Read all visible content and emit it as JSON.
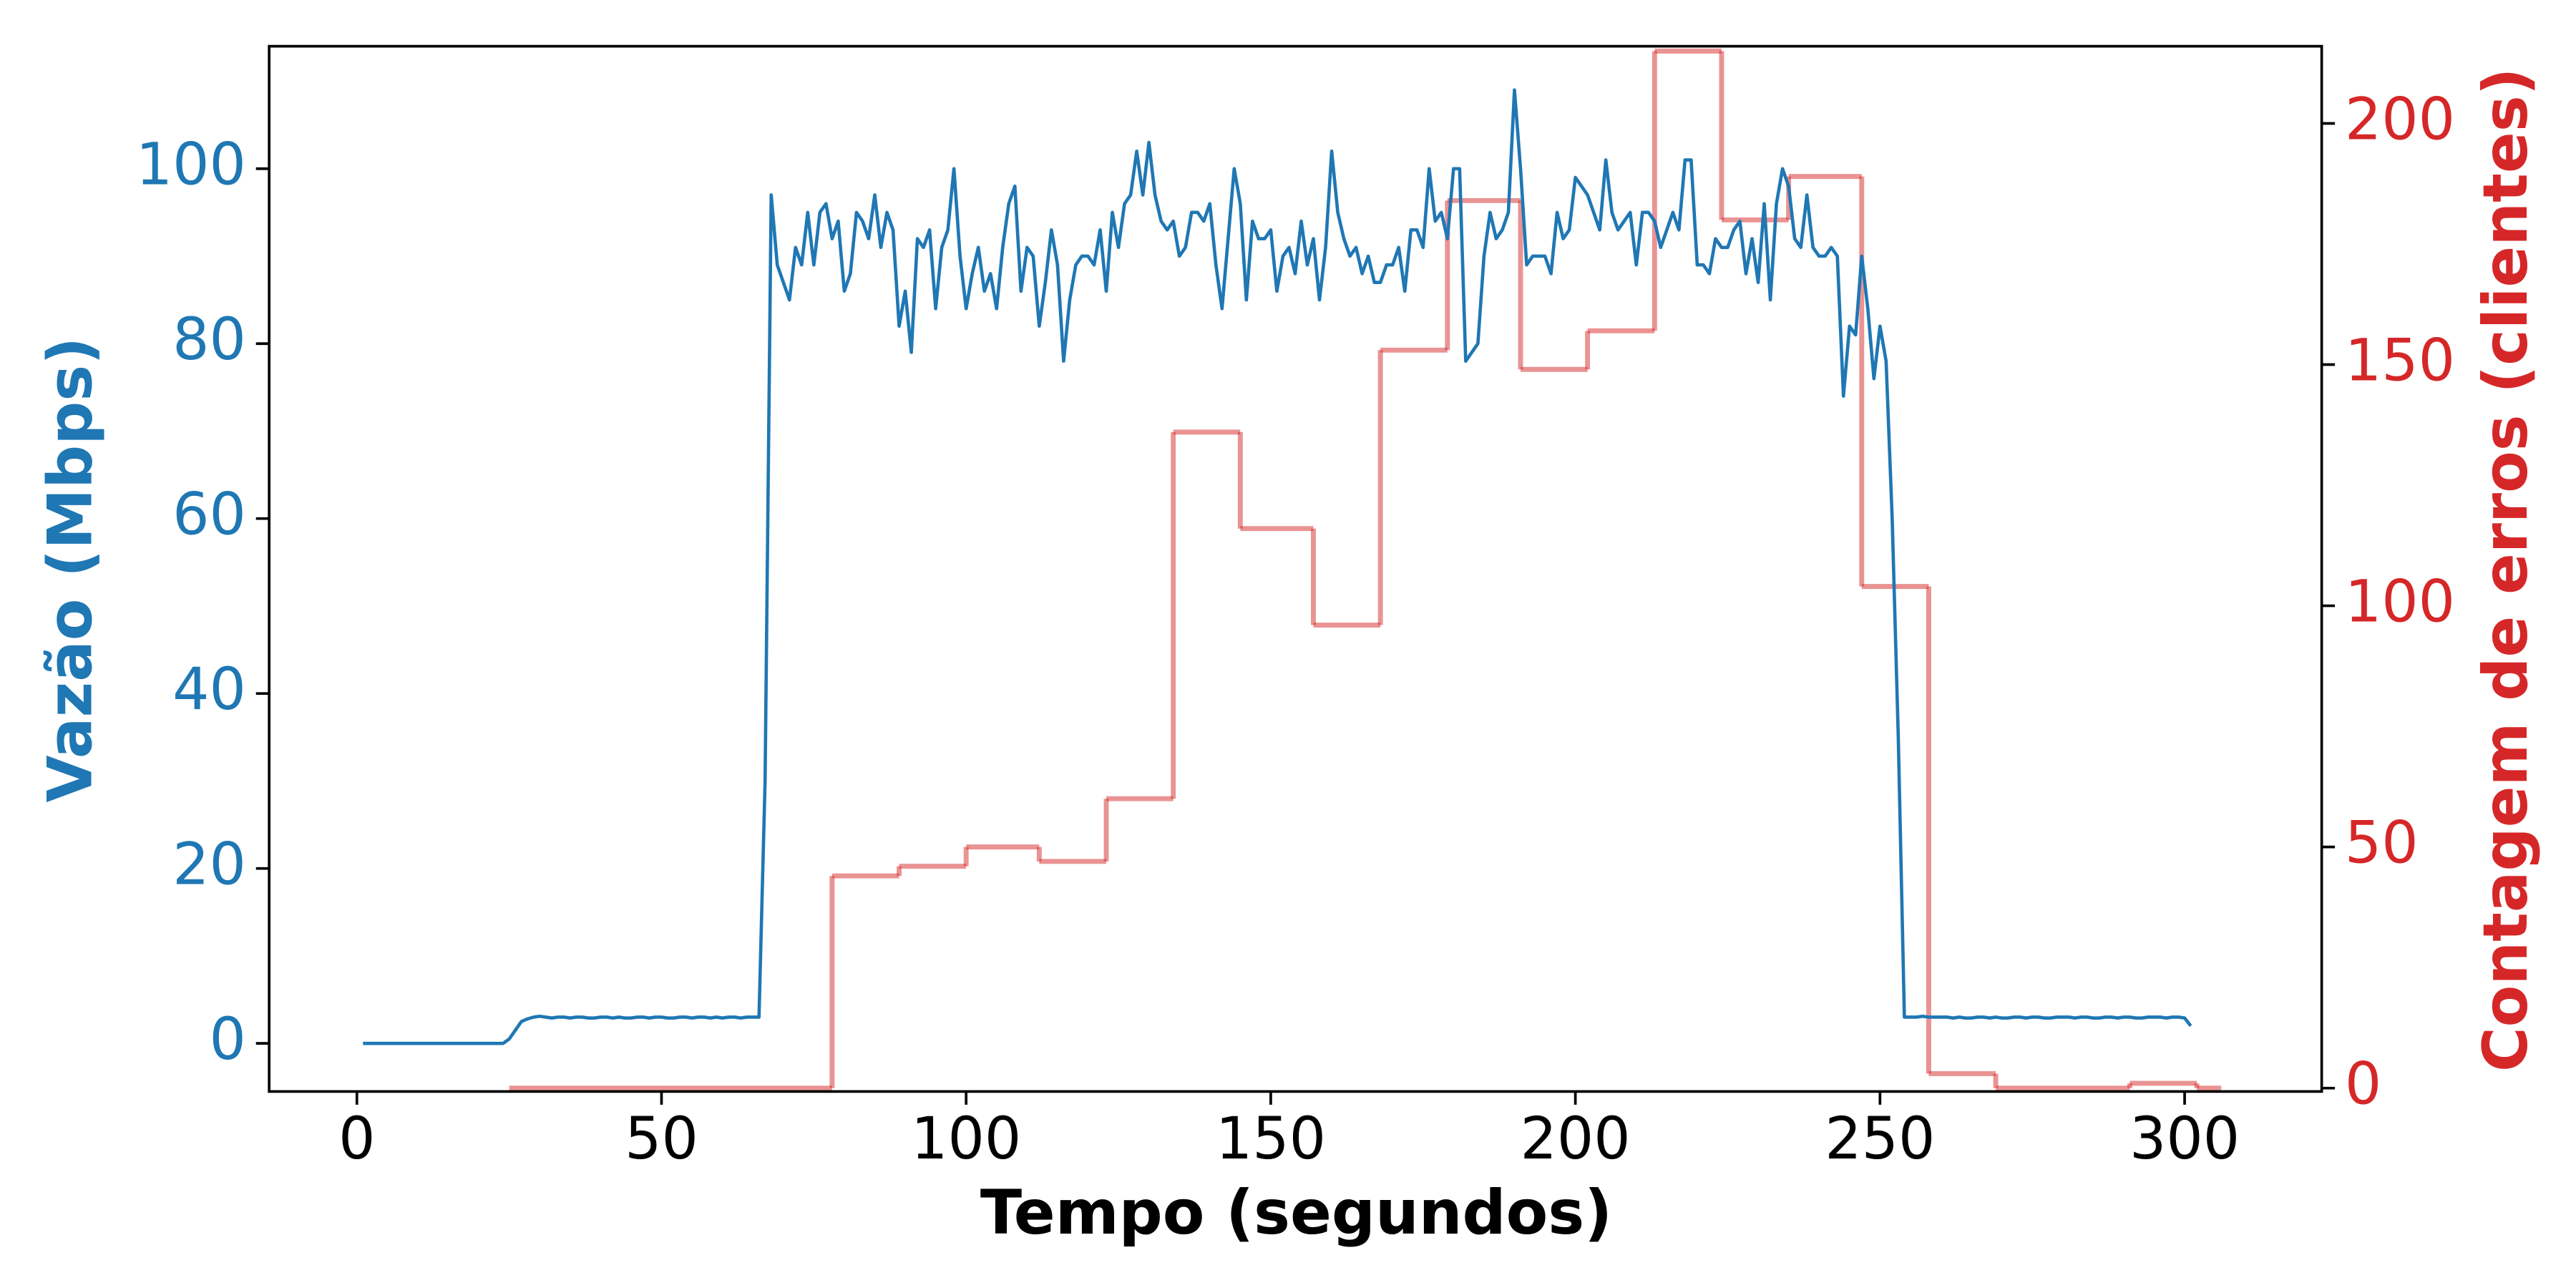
{
  "chart_data": {
    "type": "line",
    "xlabel": "Tempo (segundos)",
    "ylabel": "Vazão (Mbps)",
    "y2label": "Contagem de erros (clientes)",
    "ylabel_color": "#1f77b4",
    "y2label_color": "#d62728",
    "xlim": [
      -14.4,
      322.5
    ],
    "xticks": [
      0,
      50,
      100,
      150,
      200,
      250,
      300
    ],
    "ylim": [
      -5.5,
      114
    ],
    "yticks": [
      0,
      20,
      40,
      60,
      80,
      100
    ],
    "y2lim": [
      -0.7,
      216
    ],
    "y2ticks": [
      0,
      50,
      100,
      150,
      200
    ],
    "grid": false,
    "series": [
      {
        "color": "#1f77b4",
        "x": [
          1,
          2,
          3,
          4,
          5,
          6,
          7,
          8,
          9,
          10,
          11,
          12,
          13,
          14,
          15,
          16,
          17,
          18,
          19,
          20,
          21,
          22,
          23,
          24,
          25,
          26,
          27,
          28,
          29,
          30,
          31,
          32,
          33,
          34,
          35,
          36,
          37,
          38,
          39,
          40,
          41,
          42,
          43,
          44,
          45,
          46,
          47,
          48,
          49,
          50,
          51,
          52,
          53,
          54,
          55,
          56,
          57,
          58,
          59,
          60,
          61,
          62,
          63,
          64,
          65,
          66,
          67,
          68,
          69,
          70,
          71,
          72,
          73,
          74,
          75,
          76,
          77,
          78,
          79,
          80,
          81,
          82,
          83,
          84,
          85,
          86,
          87,
          88,
          89,
          90,
          91,
          92,
          93,
          94,
          95,
          96,
          97,
          98,
          99,
          100,
          101,
          102,
          103,
          104,
          105,
          106,
          107,
          108,
          109,
          110,
          111,
          112,
          113,
          114,
          115,
          116,
          117,
          118,
          119,
          120,
          121,
          122,
          123,
          124,
          125,
          126,
          127,
          128,
          129,
          130,
          131,
          132,
          133,
          134,
          135,
          136,
          137,
          138,
          139,
          140,
          141,
          142,
          143,
          144,
          145,
          146,
          147,
          148,
          149,
          150,
          151,
          152,
          153,
          154,
          155,
          156,
          157,
          158,
          159,
          160,
          161,
          162,
          163,
          164,
          165,
          166,
          167,
          168,
          169,
          170,
          171,
          172,
          173,
          174,
          175,
          176,
          177,
          178,
          179,
          180,
          181,
          182,
          183,
          184,
          185,
          186,
          187,
          188,
          189,
          190,
          191,
          192,
          193,
          194,
          195,
          196,
          197,
          198,
          199,
          200,
          201,
          202,
          203,
          204,
          205,
          206,
          207,
          208,
          209,
          210,
          211,
          212,
          213,
          214,
          215,
          216,
          217,
          218,
          219,
          220,
          221,
          222,
          223,
          224,
          225,
          226,
          227,
          228,
          229,
          230,
          231,
          232,
          233,
          234,
          235,
          236,
          237,
          238,
          239,
          240,
          241,
          242,
          243,
          244,
          245,
          246,
          247,
          248,
          249,
          250,
          251,
          252,
          253,
          254,
          255,
          256,
          257,
          258,
          259,
          260,
          261,
          262,
          263,
          264,
          265,
          266,
          267,
          268,
          269,
          270,
          271,
          272,
          273,
          274,
          275,
          276,
          277,
          278,
          279,
          280,
          281,
          282,
          283,
          284,
          285,
          286,
          287,
          288,
          289,
          290,
          291,
          292,
          293,
          294,
          295,
          296,
          297,
          298,
          299,
          300,
          301
        ],
        "values": [
          0,
          0,
          0,
          0,
          0,
          0,
          0,
          0,
          0,
          0,
          0,
          0,
          0,
          0,
          0,
          0,
          0,
          0,
          0,
          0,
          0,
          0,
          0,
          0,
          0.5,
          1.5,
          2.5,
          2.8,
          3,
          3.1,
          3,
          2.9,
          3,
          3,
          2.9,
          3,
          3,
          2.9,
          2.9,
          3,
          3,
          2.9,
          3,
          2.9,
          2.9,
          3,
          3,
          2.9,
          3,
          3,
          2.9,
          2.9,
          3,
          3,
          2.9,
          3,
          3,
          2.9,
          3,
          2.9,
          3,
          3,
          2.9,
          3,
          3,
          3,
          30,
          97,
          89,
          87,
          85,
          91,
          89,
          95,
          89,
          95,
          96,
          92,
          94,
          86,
          88,
          95,
          94,
          92,
          97,
          91,
          95,
          93,
          82,
          86,
          79,
          92,
          91,
          93,
          84,
          91,
          93,
          100,
          90,
          84,
          88,
          91,
          86,
          88,
          84,
          91,
          96,
          98,
          86,
          91,
          90,
          82,
          87,
          93,
          89,
          78,
          85,
          89,
          90,
          90,
          89,
          93,
          86,
          95,
          91,
          96,
          97,
          102,
          97,
          103,
          97,
          94,
          93,
          94,
          90,
          91,
          95,
          95,
          94,
          96,
          89,
          84,
          92,
          100,
          96,
          85,
          94,
          92,
          92,
          93,
          86,
          90,
          91,
          88,
          94,
          89,
          92,
          85,
          91,
          102,
          95,
          92,
          90,
          91,
          88,
          90,
          87,
          87,
          89,
          89,
          91,
          86,
          93,
          93,
          91,
          100,
          94,
          95,
          92,
          100,
          100,
          78,
          79,
          80,
          90,
          95,
          92,
          93,
          95,
          109,
          100,
          89,
          90,
          90,
          90,
          88,
          95,
          92,
          93,
          99,
          98,
          97,
          95,
          93,
          101,
          95,
          93,
          94,
          95,
          89,
          95,
          95,
          94,
          91,
          93,
          95,
          93,
          101,
          101,
          89,
          89,
          88,
          92,
          91,
          91,
          93,
          94,
          88,
          92,
          87,
          96,
          85,
          96,
          100,
          98,
          92,
          91,
          97,
          91,
          90,
          90,
          91,
          90,
          74,
          82,
          81,
          90,
          84,
          76,
          82,
          78,
          60,
          35,
          3,
          3,
          3,
          3.1,
          3,
          3,
          3,
          3,
          2.9,
          3,
          2.9,
          2.9,
          3,
          3,
          2.9,
          3,
          2.9,
          2.9,
          3,
          3,
          2.9,
          3,
          3,
          2.9,
          2.9,
          3,
          3,
          3,
          2.9,
          3,
          3,
          2.9,
          2.9,
          3,
          3,
          2.9,
          3,
          3,
          2.9,
          2.9,
          3,
          3,
          3,
          2.9,
          3,
          3,
          2.9,
          2
        ]
      },
      {
        "color": "#d62728",
        "opacity": 0.5,
        "axis": "y2",
        "step": "post",
        "bins": [
          25,
          78,
          89,
          100,
          112,
          123,
          134,
          145,
          157,
          168,
          179,
          191,
          202,
          213,
          224,
          235,
          247,
          258,
          269,
          291,
          302,
          306
        ],
        "values": [
          0,
          44,
          46,
          50,
          47,
          60,
          136,
          116,
          96,
          153,
          184,
          149,
          157,
          215,
          180,
          189,
          104,
          3,
          0,
          1,
          0
        ]
      }
    ]
  }
}
